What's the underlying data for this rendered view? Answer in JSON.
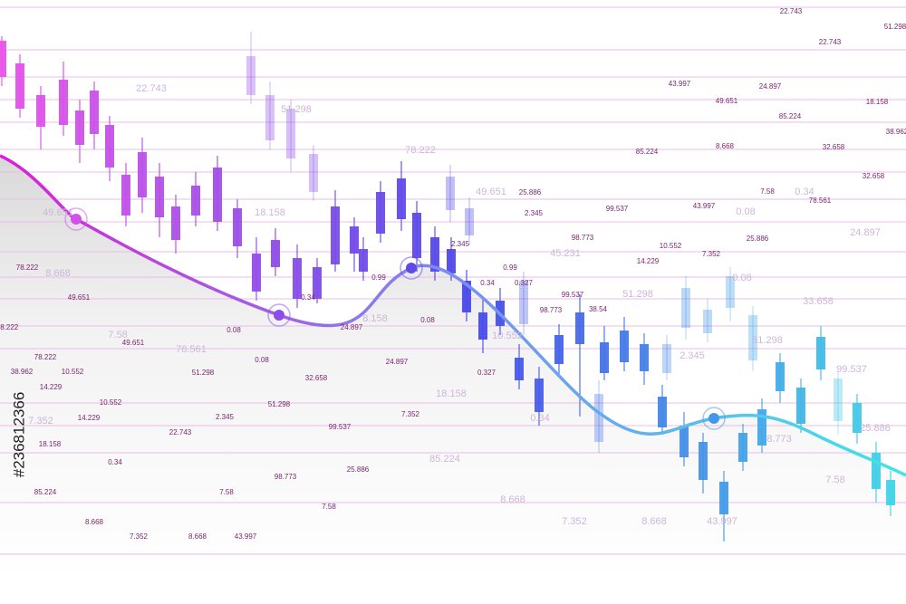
{
  "side_id": "#236812366",
  "labels": [
    "22.743",
    "22.743",
    "51.298",
    "43.997",
    "24.897",
    "49.651",
    "18.158",
    "85.224",
    "38.962",
    "85.224",
    "8.668",
    "32.658",
    "32.658",
    "25.886",
    "7.58",
    "78.561",
    "2.345",
    "99.537",
    "43.997",
    "25.886",
    "98.773",
    "10.552",
    "2.345",
    "7.352",
    "14.229",
    "0.99",
    "0.34",
    "0.327",
    "0.99",
    "0.34",
    "99.537",
    "38.54",
    "98.773",
    "0.08",
    "24.897",
    "0.08",
    "78.222",
    "49.651",
    "78.222",
    "49.651",
    "0.08",
    "24.897",
    "78.222",
    "38.962",
    "10.552",
    "51.298",
    "32.658",
    "0.327",
    "14.229",
    "10.552",
    "51.298",
    "7.352",
    "2.345",
    "14.229",
    "99.537",
    "22.743",
    "18.158",
    "0.34",
    "25.886",
    "98.773",
    "85.224",
    "7.58",
    "7.58",
    "8.668",
    "7.352",
    "8.668",
    "43.997",
    "22.743",
    "51.298",
    "78.222",
    "49.651",
    "0.34",
    "0.08",
    "24.897",
    "0.08",
    "33.658",
    "51.298",
    "99.537",
    "25.886",
    "7.58",
    "43.997",
    "8.668",
    "7.352",
    "8.668",
    "85.224",
    "18.158",
    "10.552",
    "0.34",
    "8.158",
    "78.561",
    "7.58",
    "7.352",
    "8.668",
    "49.651",
    "18.158",
    "2.345",
    "51.298",
    "45.231",
    "8.773"
  ]
}
